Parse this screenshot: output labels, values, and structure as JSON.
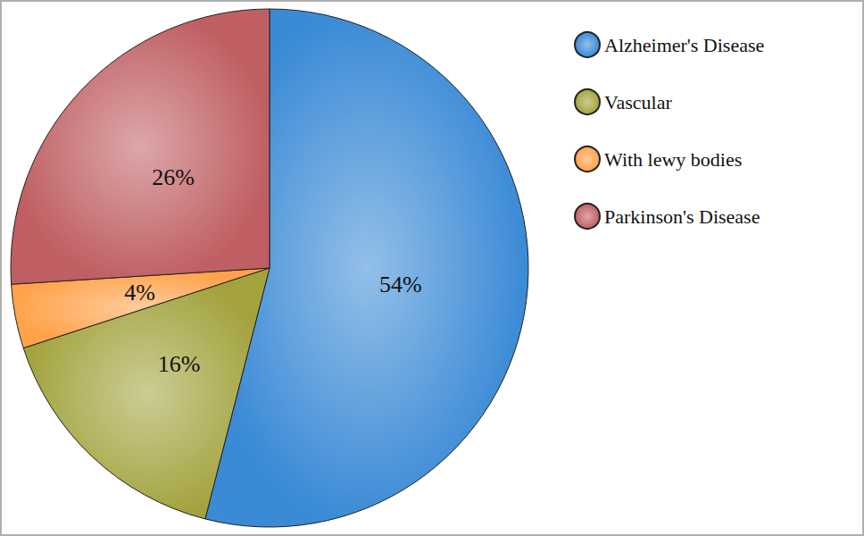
{
  "chart_data": {
    "type": "pie",
    "categories": [
      "Alzheimer's Disease",
      "Vascular",
      "With lewy bodies",
      "Parkinson's Disease"
    ],
    "values": [
      54,
      16,
      4,
      26
    ],
    "value_labels": [
      "54%",
      "16%",
      "4%",
      "26%"
    ],
    "colors": [
      "#3a8ad6",
      "#a3a33e",
      "#ffa24a",
      "#bf5f63"
    ],
    "data_labels": true,
    "legend": "top-right"
  }
}
